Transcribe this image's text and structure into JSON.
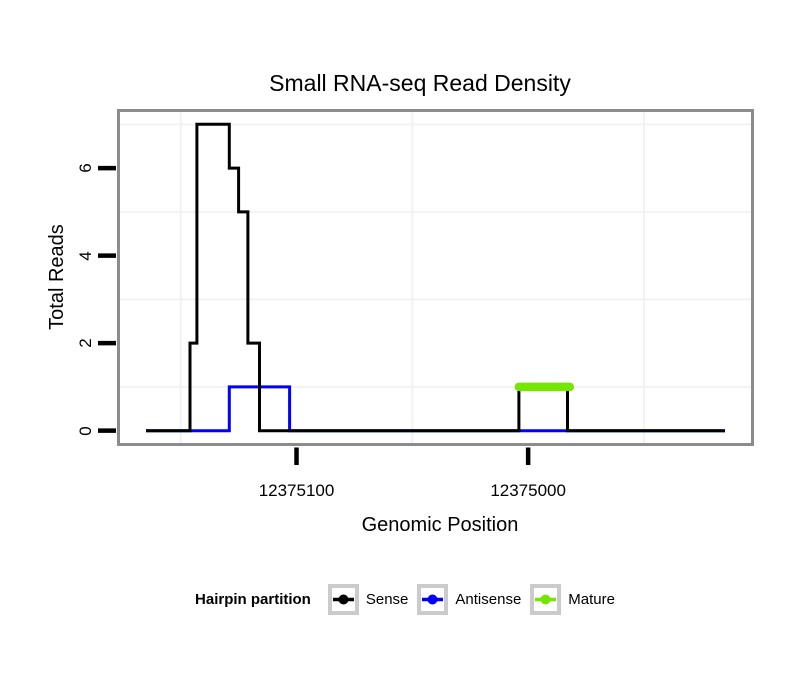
{
  "title": "Small RNA-seq Read Density",
  "axes": {
    "x_label": "Genomic Position",
    "y_label": "Total Reads"
  },
  "chart_data": {
    "type": "line",
    "title": "Small RNA-seq Read Density",
    "xlabel": "Genomic Position",
    "ylabel": "Total Reads",
    "x_reversed": true,
    "x_range_left": 12375177.5,
    "x_range_right": 12374902.5,
    "y_range": [
      -0.35,
      7.35
    ],
    "grid": "minor-only",
    "gridline_color": "#f2f2f2",
    "panel_border_color": "#8c8c8c",
    "x_ticks": [
      {
        "value": 12375100,
        "label": "12375100"
      },
      {
        "value": 12375000,
        "label": "12375000"
      }
    ],
    "y_ticks": [
      {
        "value": 0,
        "label": "0"
      },
      {
        "value": 2,
        "label": "2"
      },
      {
        "value": 4,
        "label": "4"
      },
      {
        "value": 6,
        "label": "6"
      }
    ],
    "x_minor_gridlines": [
      12375150,
      12375050,
      12374950
    ],
    "y_minor_gridlines": [
      1,
      3,
      5,
      7
    ],
    "series": [
      {
        "name": "Sense",
        "color": "#000000",
        "width": 3,
        "points": [
          [
            12375165,
            0
          ],
          [
            12375146,
            0
          ],
          [
            12375146,
            2
          ],
          [
            12375143,
            2
          ],
          [
            12375143,
            7
          ],
          [
            12375129,
            7
          ],
          [
            12375129,
            6
          ],
          [
            12375125,
            6
          ],
          [
            12375125,
            5
          ],
          [
            12375121,
            5
          ],
          [
            12375121,
            2
          ],
          [
            12375116,
            2
          ],
          [
            12375116,
            0
          ],
          [
            12375004,
            0
          ],
          [
            12375004,
            1
          ],
          [
            12374983,
            1
          ],
          [
            12374983,
            0
          ],
          [
            12374915,
            0
          ]
        ]
      },
      {
        "name": "Antisense",
        "color": "#0000ff",
        "width": 3,
        "points": [
          [
            12375165,
            0
          ],
          [
            12375129,
            0
          ],
          [
            12375129,
            1
          ],
          [
            12375103,
            1
          ],
          [
            12375103,
            0
          ],
          [
            12374915,
            0
          ]
        ]
      },
      {
        "name": "Mature",
        "color": "#74e600",
        "width": 8.5,
        "linecap": "round",
        "points": [
          [
            12375004,
            1
          ],
          [
            12374982,
            1
          ]
        ]
      }
    ]
  },
  "legend": {
    "title": "Hairpin partition",
    "items": [
      {
        "label": "Sense",
        "color": "#000000"
      },
      {
        "label": "Antisense",
        "color": "#0000ff"
      },
      {
        "label": "Mature",
        "color": "#74e600"
      }
    ]
  }
}
